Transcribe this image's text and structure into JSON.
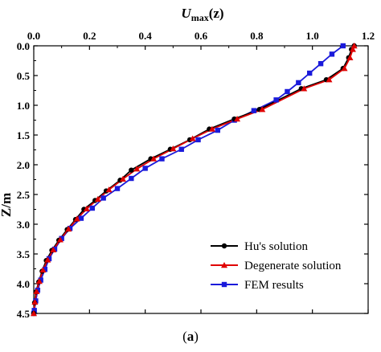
{
  "chart_data": {
    "type": "line",
    "title": "",
    "xlabel_main": "U",
    "xlabel_sub": "max",
    "xlabel_suffix": "(z)",
    "ylabel": "Z/m",
    "xlim": [
      0,
      1.2
    ],
    "ylim": [
      0,
      4.5
    ],
    "y_inverted": true,
    "x_ticks": [
      0,
      0.2,
      0.4,
      0.6,
      0.8,
      1.0,
      1.2
    ],
    "x_tick_labels": [
      "0.0",
      "0.2",
      "0.4",
      "0.6",
      "0.8",
      "1.0",
      "1.2"
    ],
    "y_ticks": [
      0,
      0.5,
      1.0,
      1.5,
      2.0,
      2.5,
      3.0,
      3.5,
      4.0,
      4.5
    ],
    "y_tick_labels": [
      "0.0",
      "0.5",
      "1.0",
      "1.5",
      "2.0",
      "2.5",
      "3.0",
      "3.5",
      "4.0",
      "4.5"
    ],
    "legend_position": "bottom-right",
    "grid": false,
    "series": [
      {
        "name": "Hu's solution",
        "color": "#000000",
        "marker": "circle",
        "points": [
          [
            1.15,
            0.0
          ],
          [
            1.14,
            0.06
          ],
          [
            1.13,
            0.2
          ],
          [
            1.11,
            0.38
          ],
          [
            1.05,
            0.57
          ],
          [
            0.96,
            0.72
          ],
          [
            0.81,
            1.07
          ],
          [
            0.72,
            1.23
          ],
          [
            0.63,
            1.4
          ],
          [
            0.56,
            1.58
          ],
          [
            0.49,
            1.74
          ],
          [
            0.42,
            1.9
          ],
          [
            0.35,
            2.09
          ],
          [
            0.31,
            2.26
          ],
          [
            0.26,
            2.44
          ],
          [
            0.22,
            2.6
          ],
          [
            0.18,
            2.75
          ],
          [
            0.15,
            2.92
          ],
          [
            0.12,
            3.09
          ],
          [
            0.09,
            3.27
          ],
          [
            0.065,
            3.44
          ],
          [
            0.045,
            3.61
          ],
          [
            0.03,
            3.79
          ],
          [
            0.018,
            3.97
          ],
          [
            0.008,
            4.14
          ],
          [
            0.003,
            4.32
          ],
          [
            0.0,
            4.5
          ]
        ]
      },
      {
        "name": "Degenerate solution",
        "color": "#e00000",
        "marker": "triangle",
        "points": [
          [
            1.15,
            0.0
          ],
          [
            1.145,
            0.06
          ],
          [
            1.135,
            0.2
          ],
          [
            1.115,
            0.38
          ],
          [
            1.06,
            0.57
          ],
          [
            0.97,
            0.72
          ],
          [
            0.82,
            1.07
          ],
          [
            0.73,
            1.23
          ],
          [
            0.64,
            1.4
          ],
          [
            0.57,
            1.56
          ],
          [
            0.5,
            1.73
          ],
          [
            0.43,
            1.9
          ],
          [
            0.37,
            2.07
          ],
          [
            0.32,
            2.24
          ],
          [
            0.27,
            2.42
          ],
          [
            0.23,
            2.58
          ],
          [
            0.19,
            2.74
          ],
          [
            0.155,
            2.91
          ],
          [
            0.125,
            3.08
          ],
          [
            0.095,
            3.26
          ],
          [
            0.07,
            3.43
          ],
          [
            0.05,
            3.6
          ],
          [
            0.033,
            3.77
          ],
          [
            0.02,
            3.96
          ],
          [
            0.01,
            4.13
          ],
          [
            0.004,
            4.31
          ],
          [
            0.0,
            4.5
          ]
        ]
      },
      {
        "name": "FEM results",
        "color": "#1a1adb",
        "marker": "square",
        "points": [
          [
            1.11,
            0.0
          ],
          [
            1.07,
            0.14
          ],
          [
            1.03,
            0.3
          ],
          [
            0.99,
            0.46
          ],
          [
            0.95,
            0.62
          ],
          [
            0.91,
            0.77
          ],
          [
            0.87,
            0.91
          ],
          [
            0.79,
            1.09
          ],
          [
            0.72,
            1.25
          ],
          [
            0.66,
            1.42
          ],
          [
            0.59,
            1.58
          ],
          [
            0.53,
            1.74
          ],
          [
            0.46,
            1.9
          ],
          [
            0.4,
            2.06
          ],
          [
            0.35,
            2.23
          ],
          [
            0.3,
            2.4
          ],
          [
            0.25,
            2.56
          ],
          [
            0.21,
            2.73
          ],
          [
            0.17,
            2.9
          ],
          [
            0.13,
            3.07
          ],
          [
            0.1,
            3.24
          ],
          [
            0.075,
            3.42
          ],
          [
            0.055,
            3.58
          ],
          [
            0.04,
            3.76
          ],
          [
            0.025,
            3.94
          ],
          [
            0.014,
            4.11
          ],
          [
            0.007,
            4.29
          ],
          [
            0.002,
            4.45
          ],
          [
            0.0,
            4.5
          ]
        ]
      }
    ]
  },
  "caption": {
    "open": "(",
    "letter": "a",
    "close": ")"
  }
}
